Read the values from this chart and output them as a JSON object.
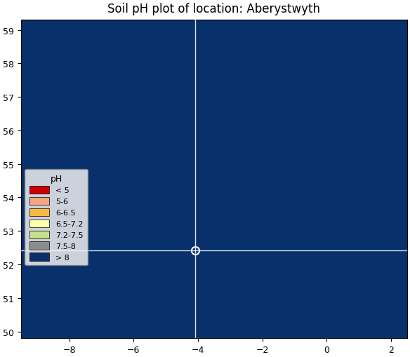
{
  "title": "Soil pH plot of location: Aberystwyth",
  "xlim": [
    -9.5,
    2.5
  ],
  "ylim": [
    49.8,
    59.3
  ],
  "xticks": [
    -8,
    -6,
    -4,
    -2,
    0,
    2
  ],
  "yticks": [
    50,
    51,
    52,
    53,
    54,
    55,
    56,
    57,
    58,
    59
  ],
  "crosshair_x": -4.08,
  "crosshair_y": 52.415,
  "legend_title": "pH",
  "legend_entries": [
    {
      "label": "< 5",
      "color": "#cc0000"
    },
    {
      "label": "5-6",
      "color": "#f4a580"
    },
    {
      "label": "6-6.5",
      "color": "#f5b942"
    },
    {
      "label": "6.5-7.2",
      "color": "#ffffb2"
    },
    {
      "label": "7.2-7.5",
      "color": "#c7e08a"
    },
    {
      "label": "7.5-8",
      "color": "#8c8c8c"
    },
    {
      "label": "> 8",
      "color": "#08306b"
    }
  ],
  "ocean_color": "#08306b",
  "background_color": "#08306b",
  "fig_width": 5.84,
  "fig_height": 5.1,
  "dpi": 100
}
